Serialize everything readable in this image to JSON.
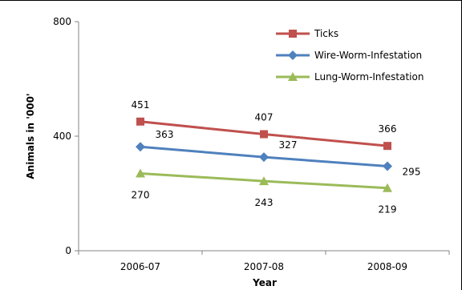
{
  "chart_data": {
    "type": "line",
    "title": "",
    "xlabel": "Year",
    "ylabel": "Animals in '000'",
    "categories": [
      "2006-07",
      "2007-08",
      "2008-09"
    ],
    "ylim": [
      0,
      800
    ],
    "yticks": [
      "0",
      "400",
      "800"
    ],
    "legend_position": "top-right",
    "series": [
      {
        "name": "Ticks",
        "values": [
          451,
          407,
          366
        ],
        "color": "#c0504d",
        "marker": "square",
        "labels": [
          "451",
          "407",
          "366"
        ]
      },
      {
        "name": "Wire-Worm-Infestation",
        "values": [
          363,
          327,
          295
        ],
        "color": "#4f81bd",
        "marker": "diamond",
        "labels": [
          "363",
          "327",
          "295"
        ]
      },
      {
        "name": "Lung-Worm-Infestation",
        "values": [
          270,
          243,
          219
        ],
        "color": "#9bbb59",
        "marker": "triangle",
        "labels": [
          "270",
          "243",
          "219"
        ]
      }
    ]
  }
}
